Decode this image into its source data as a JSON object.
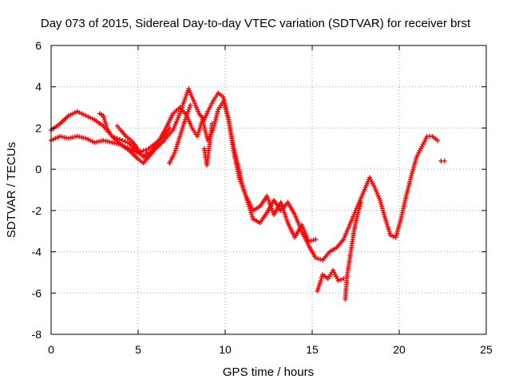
{
  "chart_data": {
    "type": "scatter",
    "title": "Day 073 of 2015, Sidereal Day-to-day VTEC variation (SDTVAR) for receiver brst",
    "xlabel": "GPS time / hours",
    "ylabel": "SDTVAR / TECUs",
    "xlim": [
      0,
      25
    ],
    "ylim": [
      -8,
      6
    ],
    "xticks": [
      0,
      5,
      10,
      15,
      20,
      25
    ],
    "yticks": [
      -8,
      -6,
      -4,
      -2,
      0,
      2,
      4,
      6
    ],
    "grid": true,
    "legend": "none",
    "marker": "+",
    "color": "#ff0000",
    "series": [
      {
        "x": [
          0.0,
          0.5,
          1.0,
          1.5,
          2.0,
          2.5,
          3.0,
          3.5,
          4.0,
          4.5,
          5.0,
          5.3,
          5.7,
          6.0,
          6.5,
          7.0,
          7.3,
          7.6,
          7.9,
          8.2,
          8.5,
          8.8,
          9.0,
          9.3,
          9.6,
          9.9,
          10.2,
          10.5,
          10.8,
          11.0,
          11.3,
          11.6,
          12.0,
          12.4,
          12.8,
          13.2,
          13.6,
          14.0,
          14.4,
          14.8,
          15.2,
          15.6,
          16.0,
          16.4,
          16.8,
          17.2,
          17.6,
          18.0,
          18.3,
          18.6,
          18.9,
          19.2,
          19.5,
          19.8,
          20.1,
          20.4,
          20.7,
          21.0,
          21.3,
          21.6,
          21.9,
          22.2
        ],
        "y": [
          1.9,
          2.2,
          2.6,
          2.8,
          2.6,
          2.4,
          2.1,
          1.6,
          1.2,
          0.9,
          0.5,
          0.3,
          0.7,
          1.0,
          1.4,
          1.9,
          2.5,
          3.2,
          3.9,
          3.3,
          2.7,
          2.4,
          2.8,
          3.3,
          3.7,
          3.5,
          2.4,
          1.0,
          0.0,
          -0.8,
          -1.6,
          -2.4,
          -2.6,
          -2.1,
          -1.5,
          -2.0,
          -1.6,
          -2.2,
          -3.0,
          -3.7,
          -4.3,
          -4.4,
          -4.0,
          -3.8,
          -3.4,
          -2.6,
          -1.8,
          -1.0,
          -0.4,
          -0.9,
          -1.5,
          -2.4,
          -3.2,
          -3.3,
          -2.4,
          -1.3,
          -0.3,
          0.6,
          1.1,
          1.6,
          1.6,
          1.4
        ]
      },
      {
        "x": [
          0.0,
          0.5,
          1.0,
          1.5,
          2.0,
          2.5,
          3.0,
          3.5,
          4.0,
          4.5,
          5.0,
          5.4,
          5.8,
          6.2,
          6.6,
          7.0,
          7.4,
          7.8,
          8.1,
          8.4,
          8.7,
          9.0,
          9.3,
          9.6,
          9.9,
          10.2,
          10.5,
          10.8,
          11.2,
          11.6,
          12.0,
          12.4,
          12.8,
          13.2,
          13.6,
          14.0,
          14.4,
          14.8,
          15.2
        ],
        "y": [
          1.4,
          1.6,
          1.5,
          1.6,
          1.5,
          1.3,
          1.4,
          1.3,
          1.2,
          1.0,
          0.8,
          0.6,
          0.9,
          1.4,
          2.0,
          2.7,
          3.0,
          2.6,
          2.0,
          1.6,
          2.4,
          1.4,
          1.9,
          2.9,
          3.3,
          2.4,
          0.8,
          -0.4,
          -1.3,
          -2.0,
          -1.8,
          -1.3,
          -2.2,
          -1.6,
          -2.6,
          -3.3,
          -2.7,
          -3.5,
          -3.4
        ]
      },
      {
        "x": [
          2.8,
          3.0,
          3.2,
          3.5,
          3.8,
          4.1,
          4.4,
          4.7,
          5.0,
          5.3,
          5.6,
          5.9,
          6.2,
          6.5,
          6.8
        ],
        "y": [
          2.7,
          2.6,
          2.0,
          1.6,
          1.5,
          1.4,
          1.3,
          1.1,
          0.8,
          0.9,
          1.0,
          1.2,
          1.4,
          1.6,
          2.0
        ]
      },
      {
        "x": [
          3.8,
          4.0,
          4.3,
          4.6,
          4.9,
          5.1,
          5.3,
          5.5
        ],
        "y": [
          2.1,
          1.9,
          1.6,
          1.4,
          1.1,
          0.8,
          0.6,
          0.8
        ]
      },
      {
        "x": [
          6.8,
          7.1,
          7.4,
          7.7,
          8.0
        ],
        "y": [
          0.3,
          0.8,
          1.6,
          2.4,
          3.1
        ]
      },
      {
        "x": [
          8.8,
          8.95,
          9.1,
          9.25
        ],
        "y": [
          1.0,
          0.2,
          1.2,
          2.2
        ]
      },
      {
        "x": [
          15.3,
          15.6,
          15.9,
          16.2,
          16.5,
          16.8
        ],
        "y": [
          -5.9,
          -5.1,
          -5.3,
          -4.9,
          -5.4,
          -5.3
        ]
      },
      {
        "x": [
          16.9,
          17.0,
          17.2,
          17.4,
          17.6,
          17.8
        ],
        "y": [
          -6.3,
          -5.2,
          -4.1,
          -3.0,
          -2.2,
          -1.6
        ]
      },
      {
        "x": [
          22.4,
          22.6
        ],
        "y": [
          0.4,
          0.4
        ]
      }
    ]
  }
}
